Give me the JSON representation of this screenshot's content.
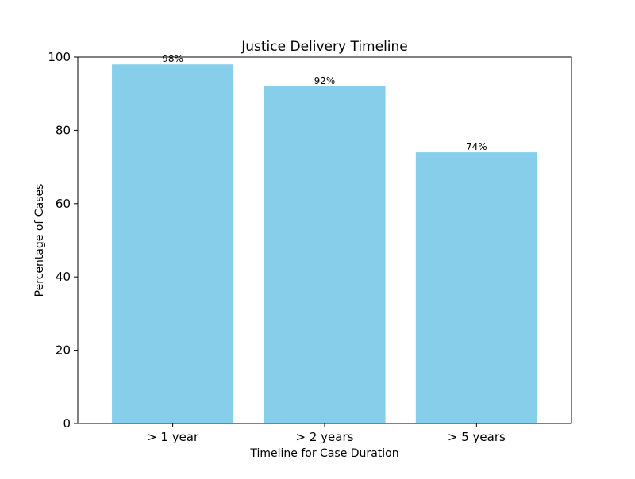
{
  "chart_data": {
    "type": "bar",
    "title": "Justice Delivery Timeline",
    "xlabel": "Timeline for Case Duration",
    "ylabel": "Percentage of Cases",
    "categories": [
      "> 1 year",
      "> 2 years",
      "> 5 years"
    ],
    "values": [
      98,
      92,
      74
    ],
    "data_labels": [
      "98%",
      "92%",
      "74%"
    ],
    "ylim": [
      0,
      100
    ],
    "yticks": [
      0,
      20,
      40,
      60,
      80,
      100
    ],
    "grid": false,
    "bar_color": "#87CEEB"
  }
}
